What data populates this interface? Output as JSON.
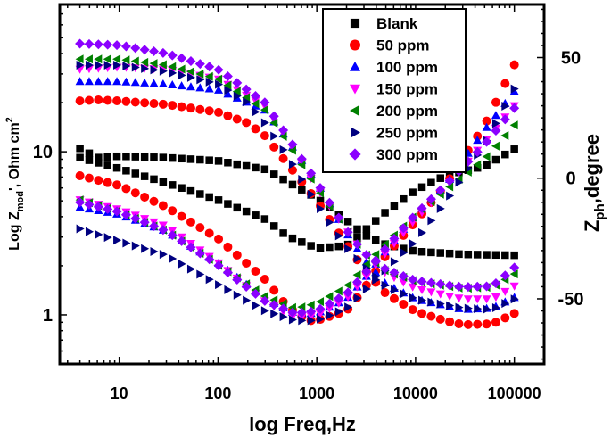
{
  "chart_data": {
    "type": "scatter",
    "title": "",
    "xlabel": "log Freq,Hz",
    "ylabel_left": "Log Z",
    "ylabel_left_sub": "mod",
    "ylabel_left_tail": "', Ohm cm",
    "ylabel_left_sup": "2",
    "ylabel_right": "Z",
    "ylabel_right_sub": "ph",
    "ylabel_right_tail": ",degree",
    "xscale": "log",
    "xlim": [
      2.5,
      200000
    ],
    "ylim_left": [
      0.5,
      80
    ],
    "yscale_left": "log",
    "ylim_right": [
      -77,
      72
    ],
    "x_ticks": [
      10,
      100,
      1000,
      10000,
      100000
    ],
    "x_tick_labels": [
      "10",
      "100",
      "1000",
      "10000",
      "100000"
    ],
    "y_left_ticks": [
      1,
      10
    ],
    "y_left_tick_labels": [
      "1",
      "10"
    ],
    "y_right_ticks": [
      50,
      0,
      -50
    ],
    "y_right_tick_labels": [
      "50",
      "0",
      "-50"
    ],
    "legend_position": "top-right",
    "series": [
      {
        "name": "Blank",
        "color": "#000000",
        "marker": "square",
        "modulus": [
          [
            4,
            10.5
          ],
          [
            6,
            9.2
          ],
          [
            10,
            9.4
          ],
          [
            30,
            9.2
          ],
          [
            100,
            8.8
          ],
          [
            300,
            7.8
          ],
          [
            1000,
            5.2
          ],
          [
            2000,
            3.8
          ],
          [
            3000,
            3.1
          ],
          [
            5000,
            2.7
          ],
          [
            10000,
            2.45
          ],
          [
            30000,
            2.35
          ],
          [
            100000,
            2.32
          ]
        ],
        "phase": [
          [
            4,
            8.5
          ],
          [
            10,
            4
          ],
          [
            30,
            -2
          ],
          [
            100,
            -9
          ],
          [
            300,
            -17
          ],
          [
            500,
            -24
          ],
          [
            1000,
            -29
          ],
          [
            2000,
            -28
          ],
          [
            3000,
            -22
          ],
          [
            5000,
            -14
          ],
          [
            10000,
            -5
          ],
          [
            20000,
            1
          ],
          [
            50000,
            5
          ],
          [
            100000,
            12
          ]
        ]
      },
      {
        "name": "50 ppm",
        "color": "#ff0000",
        "marker": "circle",
        "modulus": [
          [
            4,
            20.5
          ],
          [
            6,
            20.8
          ],
          [
            10,
            20.5
          ],
          [
            30,
            19.5
          ],
          [
            100,
            17.5
          ],
          [
            200,
            15
          ],
          [
            300,
            12.5
          ],
          [
            500,
            8.5
          ],
          [
            1000,
            5
          ],
          [
            2000,
            2.7
          ],
          [
            3000,
            1.9
          ],
          [
            5000,
            1.35
          ],
          [
            10000,
            1.05
          ],
          [
            20000,
            0.92
          ],
          [
            30000,
            0.87
          ],
          [
            60000,
            0.88
          ],
          [
            100000,
            1.02
          ]
        ],
        "phase": [
          [
            4,
            1
          ],
          [
            10,
            -3
          ],
          [
            30,
            -12
          ],
          [
            100,
            -25
          ],
          [
            300,
            -42
          ],
          [
            500,
            -53
          ],
          [
            800,
            -59
          ],
          [
            1000,
            -59
          ],
          [
            2000,
            -55
          ],
          [
            3000,
            -46
          ],
          [
            5000,
            -32
          ],
          [
            10000,
            -18
          ],
          [
            20000,
            -3
          ],
          [
            50000,
            22
          ],
          [
            100000,
            47
          ]
        ]
      },
      {
        "name": "100 ppm",
        "color": "#0000ff",
        "marker": "triangle-up",
        "modulus": [
          [
            4,
            27
          ],
          [
            10,
            27
          ],
          [
            30,
            26
          ],
          [
            100,
            24
          ],
          [
            300,
            18
          ],
          [
            500,
            12
          ],
          [
            1000,
            6.5
          ],
          [
            2000,
            3.2
          ],
          [
            3000,
            2.2
          ],
          [
            5000,
            1.55
          ],
          [
            10000,
            1.25
          ],
          [
            30000,
            1.08
          ],
          [
            60000,
            1.1
          ],
          [
            100000,
            1.28
          ]
        ],
        "phase": [
          [
            4,
            -12
          ],
          [
            10,
            -15
          ],
          [
            30,
            -22
          ],
          [
            100,
            -35
          ],
          [
            300,
            -50
          ],
          [
            600,
            -56
          ],
          [
            1000,
            -56
          ],
          [
            2000,
            -50
          ],
          [
            3000,
            -42
          ],
          [
            5000,
            -30
          ],
          [
            10000,
            -15
          ],
          [
            20000,
            -3
          ],
          [
            50000,
            20
          ],
          [
            100000,
            36
          ]
        ]
      },
      {
        "name": "150 ppm",
        "color": "#ff00ff",
        "marker": "triangle-down",
        "modulus": [
          [
            4,
            32
          ],
          [
            10,
            33
          ],
          [
            30,
            32
          ],
          [
            100,
            28
          ],
          [
            300,
            19
          ],
          [
            500,
            12
          ],
          [
            1000,
            6
          ],
          [
            2000,
            3.3
          ],
          [
            3000,
            2.4
          ],
          [
            5000,
            1.8
          ],
          [
            10000,
            1.45
          ],
          [
            30000,
            1.25
          ],
          [
            60000,
            1.25
          ],
          [
            100000,
            1.5
          ]
        ],
        "phase": [
          [
            4,
            -9
          ],
          [
            10,
            -13
          ],
          [
            30,
            -20
          ],
          [
            100,
            -35
          ],
          [
            300,
            -51
          ],
          [
            600,
            -58
          ],
          [
            1000,
            -57
          ],
          [
            2000,
            -50
          ],
          [
            3000,
            -42
          ],
          [
            5000,
            -31
          ],
          [
            10000,
            -17
          ],
          [
            20000,
            -4
          ],
          [
            50000,
            15
          ],
          [
            100000,
            30
          ]
        ]
      },
      {
        "name": "200 ppm",
        "color": "#008000",
        "marker": "triangle-left",
        "modulus": [
          [
            4,
            37
          ],
          [
            10,
            37
          ],
          [
            30,
            34
          ],
          [
            100,
            28
          ],
          [
            300,
            18
          ],
          [
            500,
            11.5
          ],
          [
            1000,
            6
          ],
          [
            2000,
            3.3
          ],
          [
            3000,
            2.4
          ],
          [
            5000,
            1.85
          ],
          [
            10000,
            1.6
          ],
          [
            30000,
            1.45
          ],
          [
            60000,
            1.48
          ],
          [
            100000,
            1.78
          ]
        ],
        "phase": [
          [
            4,
            -9
          ],
          [
            10,
            -14
          ],
          [
            30,
            -22
          ],
          [
            100,
            -36
          ],
          [
            300,
            -49
          ],
          [
            600,
            -54
          ],
          [
            1000,
            -52
          ],
          [
            2000,
            -45
          ],
          [
            3000,
            -37
          ],
          [
            5000,
            -27
          ],
          [
            10000,
            -15
          ],
          [
            20000,
            -5
          ],
          [
            50000,
            8
          ],
          [
            100000,
            22
          ]
        ]
      },
      {
        "name": "250 ppm",
        "color": "#000080",
        "marker": "triangle-right",
        "modulus": [
          [
            4,
            34
          ],
          [
            10,
            34
          ],
          [
            30,
            31
          ],
          [
            100,
            26
          ],
          [
            200,
            20
          ],
          [
            300,
            15
          ],
          [
            500,
            9.5
          ],
          [
            1000,
            4.8
          ],
          [
            2000,
            2.6
          ],
          [
            3000,
            2.0
          ],
          [
            5000,
            1.5
          ],
          [
            10000,
            1.25
          ],
          [
            30000,
            1.1
          ],
          [
            60000,
            1.08
          ],
          [
            100000,
            1.25
          ]
        ],
        "phase": [
          [
            4,
            -21
          ],
          [
            10,
            -26
          ],
          [
            30,
            -32
          ],
          [
            100,
            -44
          ],
          [
            300,
            -55
          ],
          [
            600,
            -59
          ],
          [
            1000,
            -59
          ],
          [
            2000,
            -54
          ],
          [
            3000,
            -47
          ],
          [
            5000,
            -38
          ],
          [
            10000,
            -26
          ],
          [
            20000,
            -10
          ],
          [
            50000,
            14
          ],
          [
            100000,
            37
          ]
        ]
      },
      {
        "name": "300 ppm",
        "color": "#8b00ff",
        "marker": "diamond",
        "modulus": [
          [
            4,
            46
          ],
          [
            10,
            45
          ],
          [
            30,
            40
          ],
          [
            100,
            32
          ],
          [
            300,
            20
          ],
          [
            500,
            12.5
          ],
          [
            1000,
            6.5
          ],
          [
            2000,
            3.3
          ],
          [
            3000,
            2.4
          ],
          [
            5000,
            1.9
          ],
          [
            10000,
            1.62
          ],
          [
            30000,
            1.48
          ],
          [
            60000,
            1.5
          ],
          [
            100000,
            1.95
          ]
        ],
        "phase": [
          [
            4,
            -10
          ],
          [
            10,
            -14
          ],
          [
            30,
            -22
          ],
          [
            100,
            -36
          ],
          [
            300,
            -51
          ],
          [
            600,
            -56
          ],
          [
            1000,
            -55
          ],
          [
            2000,
            -48
          ],
          [
            3000,
            -40
          ],
          [
            5000,
            -29
          ],
          [
            10000,
            -15
          ],
          [
            20000,
            -3
          ],
          [
            50000,
            14
          ],
          [
            100000,
            29
          ]
        ]
      }
    ]
  }
}
